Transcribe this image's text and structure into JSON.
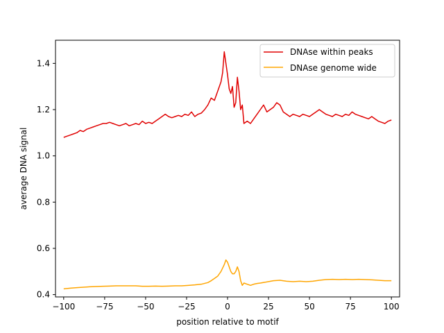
{
  "chart_data": {
    "type": "line",
    "title": "",
    "xlabel": "position relative to motif",
    "ylabel": "average DNA signal",
    "xlim": [
      -105,
      105
    ],
    "ylim": [
      0.39,
      1.5
    ],
    "xticks": [
      -100,
      -75,
      -50,
      -25,
      0,
      25,
      50,
      75,
      100
    ],
    "xtick_labels": [
      "−100",
      "−75",
      "−50",
      "−25",
      "0",
      "25",
      "50",
      "75",
      "100"
    ],
    "yticks": [
      0.4,
      0.6,
      0.8,
      1.0,
      1.2,
      1.4
    ],
    "ytick_labels": [
      "0.4",
      "0.6",
      "0.8",
      "1.0",
      "1.2",
      "1.4"
    ],
    "grid": false,
    "legend_position": "top-right",
    "series": [
      {
        "name": "DNAse within peaks",
        "color": "#e00000",
        "points": [
          [
            -100,
            1.08
          ],
          [
            -98,
            1.085
          ],
          [
            -96,
            1.09
          ],
          [
            -94,
            1.095
          ],
          [
            -92,
            1.1
          ],
          [
            -90,
            1.11
          ],
          [
            -88,
            1.105
          ],
          [
            -86,
            1.115
          ],
          [
            -84,
            1.12
          ],
          [
            -82,
            1.125
          ],
          [
            -80,
            1.13
          ],
          [
            -78,
            1.135
          ],
          [
            -76,
            1.14
          ],
          [
            -74,
            1.14
          ],
          [
            -72,
            1.145
          ],
          [
            -70,
            1.14
          ],
          [
            -68,
            1.135
          ],
          [
            -66,
            1.13
          ],
          [
            -64,
            1.135
          ],
          [
            -62,
            1.14
          ],
          [
            -60,
            1.13
          ],
          [
            -58,
            1.135
          ],
          [
            -56,
            1.14
          ],
          [
            -54,
            1.135
          ],
          [
            -52,
            1.15
          ],
          [
            -50,
            1.14
          ],
          [
            -48,
            1.145
          ],
          [
            -46,
            1.14
          ],
          [
            -44,
            1.15
          ],
          [
            -42,
            1.16
          ],
          [
            -40,
            1.17
          ],
          [
            -38,
            1.18
          ],
          [
            -36,
            1.17
          ],
          [
            -34,
            1.165
          ],
          [
            -32,
            1.17
          ],
          [
            -30,
            1.175
          ],
          [
            -28,
            1.17
          ],
          [
            -26,
            1.18
          ],
          [
            -24,
            1.175
          ],
          [
            -22,
            1.19
          ],
          [
            -20,
            1.17
          ],
          [
            -18,
            1.18
          ],
          [
            -16,
            1.185
          ],
          [
            -14,
            1.2
          ],
          [
            -12,
            1.22
          ],
          [
            -10,
            1.25
          ],
          [
            -8,
            1.24
          ],
          [
            -6,
            1.28
          ],
          [
            -4,
            1.32
          ],
          [
            -3,
            1.36
          ],
          [
            -2,
            1.45
          ],
          [
            -1,
            1.4
          ],
          [
            0,
            1.35
          ],
          [
            1,
            1.29
          ],
          [
            2,
            1.27
          ],
          [
            3,
            1.3
          ],
          [
            4,
            1.21
          ],
          [
            5,
            1.23
          ],
          [
            6,
            1.34
          ],
          [
            7,
            1.28
          ],
          [
            8,
            1.2
          ],
          [
            9,
            1.22
          ],
          [
            10,
            1.14
          ],
          [
            12,
            1.15
          ],
          [
            14,
            1.14
          ],
          [
            16,
            1.16
          ],
          [
            18,
            1.18
          ],
          [
            20,
            1.2
          ],
          [
            22,
            1.22
          ],
          [
            24,
            1.19
          ],
          [
            26,
            1.2
          ],
          [
            28,
            1.21
          ],
          [
            30,
            1.23
          ],
          [
            32,
            1.22
          ],
          [
            34,
            1.19
          ],
          [
            36,
            1.18
          ],
          [
            38,
            1.17
          ],
          [
            40,
            1.18
          ],
          [
            42,
            1.175
          ],
          [
            44,
            1.17
          ],
          [
            46,
            1.18
          ],
          [
            48,
            1.175
          ],
          [
            50,
            1.17
          ],
          [
            52,
            1.18
          ],
          [
            54,
            1.19
          ],
          [
            56,
            1.2
          ],
          [
            58,
            1.19
          ],
          [
            60,
            1.18
          ],
          [
            62,
            1.175
          ],
          [
            64,
            1.17
          ],
          [
            66,
            1.18
          ],
          [
            68,
            1.175
          ],
          [
            70,
            1.17
          ],
          [
            72,
            1.18
          ],
          [
            74,
            1.175
          ],
          [
            76,
            1.19
          ],
          [
            78,
            1.18
          ],
          [
            80,
            1.175
          ],
          [
            82,
            1.17
          ],
          [
            84,
            1.165
          ],
          [
            86,
            1.16
          ],
          [
            88,
            1.17
          ],
          [
            90,
            1.16
          ],
          [
            92,
            1.15
          ],
          [
            94,
            1.145
          ],
          [
            96,
            1.14
          ],
          [
            98,
            1.15
          ],
          [
            100,
            1.155
          ]
        ]
      },
      {
        "name": "DNAse genome wide",
        "color": "#ffa500",
        "points": [
          [
            -100,
            0.425
          ],
          [
            -96,
            0.428
          ],
          [
            -92,
            0.43
          ],
          [
            -88,
            0.432
          ],
          [
            -84,
            0.434
          ],
          [
            -80,
            0.435
          ],
          [
            -76,
            0.436
          ],
          [
            -72,
            0.437
          ],
          [
            -68,
            0.438
          ],
          [
            -64,
            0.438
          ],
          [
            -60,
            0.438
          ],
          [
            -56,
            0.438
          ],
          [
            -52,
            0.436
          ],
          [
            -48,
            0.436
          ],
          [
            -44,
            0.437
          ],
          [
            -40,
            0.436
          ],
          [
            -36,
            0.437
          ],
          [
            -32,
            0.438
          ],
          [
            -28,
            0.438
          ],
          [
            -24,
            0.44
          ],
          [
            -20,
            0.442
          ],
          [
            -16,
            0.445
          ],
          [
            -12,
            0.452
          ],
          [
            -10,
            0.46
          ],
          [
            -8,
            0.47
          ],
          [
            -6,
            0.48
          ],
          [
            -4,
            0.5
          ],
          [
            -2,
            0.53
          ],
          [
            -1,
            0.55
          ],
          [
            0,
            0.54
          ],
          [
            1,
            0.52
          ],
          [
            2,
            0.5
          ],
          [
            3,
            0.49
          ],
          [
            4,
            0.49
          ],
          [
            5,
            0.5
          ],
          [
            6,
            0.52
          ],
          [
            7,
            0.5
          ],
          [
            8,
            0.46
          ],
          [
            9,
            0.44
          ],
          [
            10,
            0.45
          ],
          [
            12,
            0.445
          ],
          [
            14,
            0.44
          ],
          [
            16,
            0.445
          ],
          [
            18,
            0.448
          ],
          [
            20,
            0.45
          ],
          [
            24,
            0.455
          ],
          [
            28,
            0.46
          ],
          [
            32,
            0.462
          ],
          [
            36,
            0.458
          ],
          [
            40,
            0.456
          ],
          [
            44,
            0.458
          ],
          [
            48,
            0.456
          ],
          [
            52,
            0.458
          ],
          [
            56,
            0.462
          ],
          [
            60,
            0.465
          ],
          [
            64,
            0.466
          ],
          [
            68,
            0.465
          ],
          [
            72,
            0.466
          ],
          [
            76,
            0.465
          ],
          [
            80,
            0.466
          ],
          [
            84,
            0.465
          ],
          [
            88,
            0.464
          ],
          [
            92,
            0.462
          ],
          [
            96,
            0.46
          ],
          [
            100,
            0.46
          ]
        ]
      }
    ]
  }
}
